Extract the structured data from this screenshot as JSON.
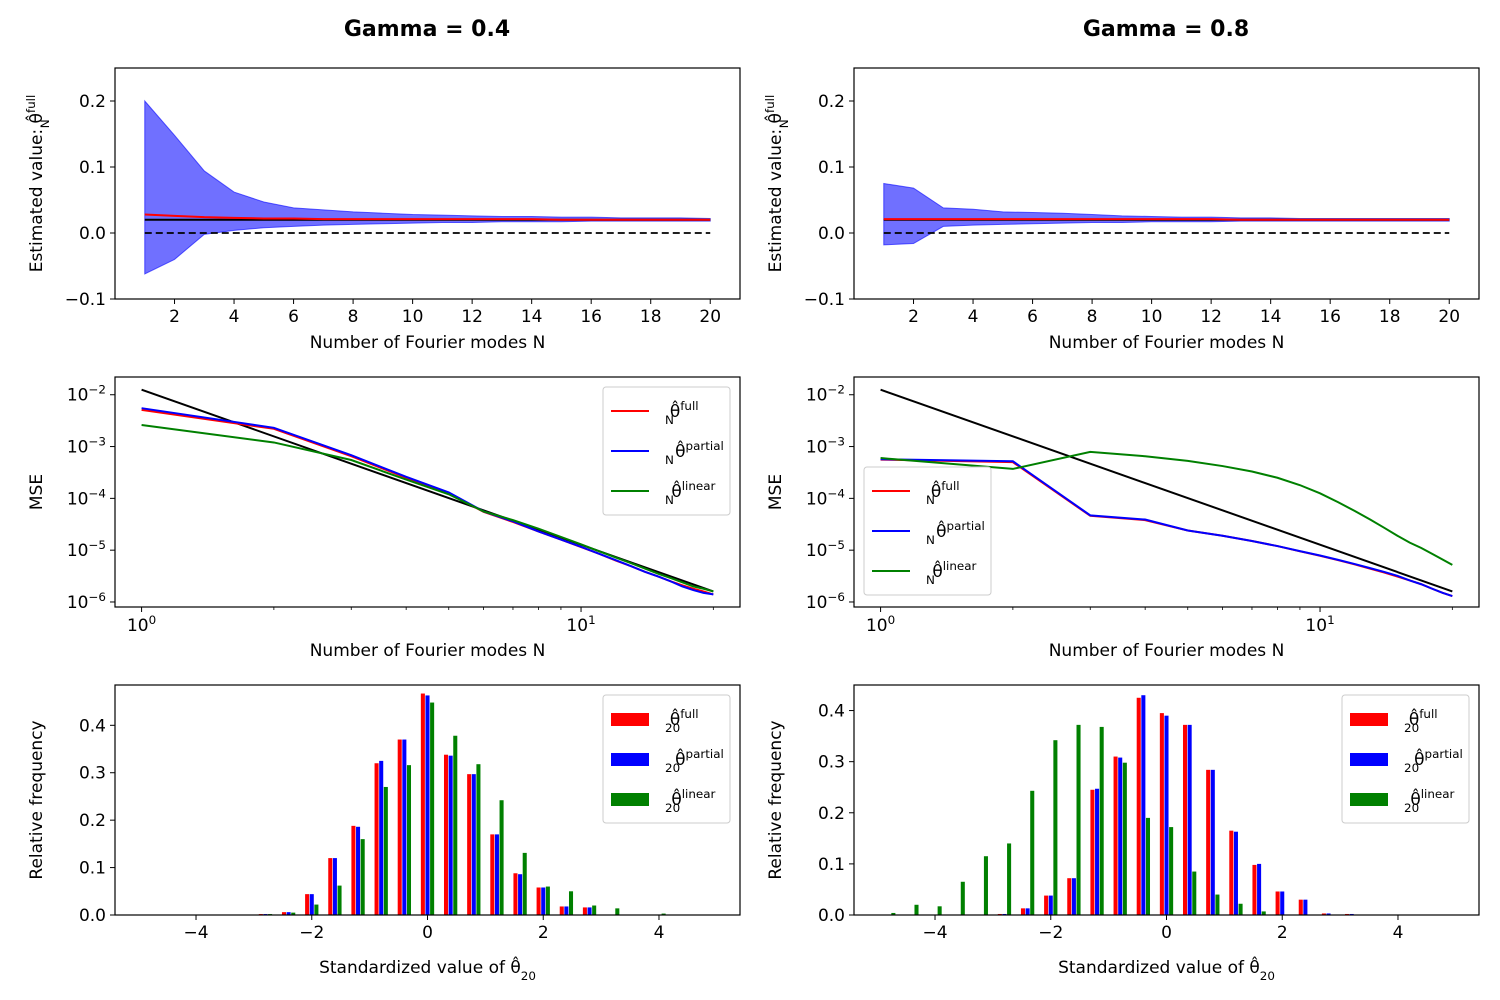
{
  "figure": {
    "columns": [
      {
        "title": "Gamma = 0.4"
      },
      {
        "title": "Gamma = 0.8"
      }
    ]
  },
  "colors": {
    "full": "#ff0000",
    "partial": "#0000ff",
    "linear": "#008000",
    "reference": "#000000",
    "band": "#7070ff"
  },
  "chart_data": [
    {
      "id": "est_g04",
      "type": "area",
      "row": 0,
      "col": 0,
      "xlabel": "Number of Fourier modes N",
      "ylabel": "Estimated value: θ̂",
      "ylabel_sup": "full",
      "ylabel_sub": "N",
      "xlim": [
        0,
        21
      ],
      "ylim": [
        -0.1,
        0.25
      ],
      "xticks": [
        2,
        4,
        6,
        8,
        10,
        12,
        14,
        16,
        18,
        20
      ],
      "yticks": [
        -0.1,
        0.0,
        0.1,
        0.2
      ],
      "ytick_labels": [
        "−0.1",
        "0.0",
        "0.1",
        "0.2"
      ],
      "x": [
        1,
        2,
        3,
        4,
        5,
        6,
        7,
        8,
        9,
        10,
        11,
        12,
        13,
        14,
        15,
        16,
        17,
        18,
        19,
        20
      ],
      "band_upper": [
        0.2,
        0.148,
        0.094,
        0.062,
        0.047,
        0.038,
        0.035,
        0.032,
        0.03,
        0.028,
        0.027,
        0.026,
        0.025,
        0.025,
        0.024,
        0.024,
        0.023,
        0.023,
        0.023,
        0.022
      ],
      "band_lower": [
        -0.062,
        -0.04,
        -0.002,
        0.004,
        0.008,
        0.01,
        0.012,
        0.013,
        0.014,
        0.015,
        0.016,
        0.016,
        0.017,
        0.017,
        0.017,
        0.018,
        0.018,
        0.018,
        0.018,
        0.018
      ],
      "mean": [
        0.028,
        0.026,
        0.024,
        0.023,
        0.022,
        0.022,
        0.021,
        0.021,
        0.021,
        0.021,
        0.021,
        0.021,
        0.021,
        0.021,
        0.02,
        0.02,
        0.02,
        0.02,
        0.02,
        0.02
      ],
      "true_value": 0.02,
      "zero_line": 0.0
    },
    {
      "id": "est_g08",
      "type": "area",
      "row": 0,
      "col": 1,
      "xlabel": "Number of Fourier modes N",
      "ylabel": "Estimated value: θ̂",
      "ylabel_sup": "full",
      "ylabel_sub": "N",
      "xlim": [
        0,
        21
      ],
      "ylim": [
        -0.1,
        0.25
      ],
      "xticks": [
        2,
        4,
        6,
        8,
        10,
        12,
        14,
        16,
        18,
        20
      ],
      "yticks": [
        -0.1,
        0.0,
        0.1,
        0.2
      ],
      "ytick_labels": [
        "−0.1",
        "0.0",
        "0.1",
        "0.2"
      ],
      "x": [
        1,
        2,
        3,
        4,
        5,
        6,
        7,
        8,
        9,
        10,
        11,
        12,
        13,
        14,
        15,
        16,
        17,
        18,
        19,
        20
      ],
      "band_upper": [
        0.075,
        0.068,
        0.038,
        0.036,
        0.032,
        0.031,
        0.03,
        0.028,
        0.026,
        0.025,
        0.024,
        0.024,
        0.023,
        0.023,
        0.022,
        0.022,
        0.022,
        0.022,
        0.022,
        0.022
      ],
      "band_lower": [
        -0.018,
        -0.016,
        0.01,
        0.012,
        0.013,
        0.014,
        0.015,
        0.016,
        0.016,
        0.017,
        0.017,
        0.017,
        0.018,
        0.018,
        0.018,
        0.018,
        0.018,
        0.018,
        0.018,
        0.018
      ],
      "mean": [
        0.021,
        0.021,
        0.021,
        0.021,
        0.021,
        0.021,
        0.021,
        0.021,
        0.021,
        0.021,
        0.021,
        0.021,
        0.02,
        0.02,
        0.02,
        0.02,
        0.02,
        0.02,
        0.02,
        0.02
      ],
      "true_value": 0.02,
      "zero_line": 0.0
    },
    {
      "id": "mse_g04",
      "type": "line",
      "row": 1,
      "col": 0,
      "xscale": "log",
      "yscale": "log",
      "xlabel": "Number of Fourier modes N",
      "ylabel": "MSE",
      "xlim": [
        0.87,
        23
      ],
      "ylim": [
        8e-07,
        0.022
      ],
      "xticks": [
        1,
        10
      ],
      "xtick_bases": [
        "10",
        "10"
      ],
      "xtick_exps": [
        "0",
        "1"
      ],
      "yticks": [
        1e-06,
        1e-05,
        0.0001,
        0.001,
        0.01
      ],
      "ytick_exps": [
        "−6",
        "−5",
        "−4",
        "−3",
        "−2"
      ],
      "legend_loc": "upper right",
      "x": [
        1,
        2,
        3,
        4,
        5,
        6,
        7,
        8,
        9,
        10,
        11,
        12,
        13,
        14,
        15,
        16,
        17,
        18,
        19,
        20
      ],
      "reference": {
        "x": [
          1,
          20
        ],
        "values": [
          0.0125,
          1.6e-06
        ]
      },
      "series": [
        {
          "key": "full",
          "sup": "full",
          "values": [
            0.0051,
            0.0022,
            0.00065,
            0.00025,
            0.000125,
            5.5e-05,
            3.5e-05,
            2.3e-05,
            1.6e-05,
            1.15e-05,
            8.5e-06,
            6.3e-06,
            4.9e-06,
            3.8e-06,
            3.1e-06,
            2.5e-06,
            2.1e-06,
            1.8e-06,
            1.6e-06,
            1.4e-06
          ]
        },
        {
          "key": "partial",
          "sup": "partial",
          "values": [
            0.0055,
            0.0023,
            0.00068,
            0.00026,
            0.00013,
            5.6e-05,
            3.6e-05,
            2.3e-05,
            1.6e-05,
            1.16e-05,
            8.5e-06,
            6.4e-06,
            4.9e-06,
            3.8e-06,
            3.1e-06,
            2.5e-06,
            2e-06,
            1.7e-06,
            1.5e-06,
            1.4e-06
          ]
        },
        {
          "key": "linear",
          "sup": "linear",
          "values": [
            0.0026,
            0.0012,
            0.00055,
            0.00023,
            0.00012,
            5.6e-05,
            3.8e-05,
            2.6e-05,
            1.8e-05,
            1.3e-05,
            9.5e-06,
            7.2e-06,
            5.6e-06,
            4.4e-06,
            3.5e-06,
            2.9e-06,
            2.4e-06,
            2e-06,
            1.8e-06,
            1.6e-06
          ]
        }
      ]
    },
    {
      "id": "mse_g08",
      "type": "line",
      "row": 1,
      "col": 1,
      "xscale": "log",
      "yscale": "log",
      "xlabel": "Number of Fourier modes N",
      "ylabel": "MSE",
      "xlim": [
        0.87,
        23
      ],
      "ylim": [
        8e-07,
        0.022
      ],
      "xticks": [
        1,
        10
      ],
      "xtick_bases": [
        "10",
        "10"
      ],
      "xtick_exps": [
        "0",
        "1"
      ],
      "yticks": [
        1e-06,
        1e-05,
        0.0001,
        0.001,
        0.01
      ],
      "ytick_exps": [
        "−6",
        "−5",
        "−4",
        "−3",
        "−2"
      ],
      "legend_loc": "center left",
      "x": [
        1,
        2,
        3,
        4,
        5,
        6,
        7,
        8,
        9,
        10,
        11,
        12,
        13,
        14,
        15,
        16,
        17,
        18,
        19,
        20
      ],
      "reference": {
        "x": [
          1,
          20
        ],
        "values": [
          0.0125,
          1.6e-06
        ]
      },
      "series": [
        {
          "key": "full",
          "sup": "full",
          "values": [
            0.00056,
            0.0005,
            4.6e-05,
            3.8e-05,
            2.4e-05,
            1.9e-05,
            1.5e-05,
            1.2e-05,
            9.5e-06,
            7.8e-06,
            6.4e-06,
            5.3e-06,
            4.4e-06,
            3.7e-06,
            3.1e-06,
            2.6e-06,
            2.2e-06,
            1.8e-06,
            1.5e-06,
            1.3e-06
          ]
        },
        {
          "key": "partial",
          "sup": "partial",
          "values": [
            0.00057,
            0.00052,
            4.7e-05,
            3.9e-05,
            2.4e-05,
            1.9e-05,
            1.5e-05,
            1.2e-05,
            9.6e-06,
            7.9e-06,
            6.5e-06,
            5.4e-06,
            4.5e-06,
            3.8e-06,
            3.2e-06,
            2.6e-06,
            2.2e-06,
            1.8e-06,
            1.5e-06,
            1.3e-06
          ]
        },
        {
          "key": "linear",
          "sup": "linear",
          "values": [
            0.0006,
            0.00037,
            0.00079,
            0.00065,
            0.00053,
            0.00042,
            0.00033,
            0.00025,
            0.00018,
            0.000125,
            8.4e-05,
            5.7e-05,
            3.9e-05,
            2.7e-05,
            1.9e-05,
            1.4e-05,
            1.1e-05,
            8.5e-06,
            6.6e-06,
            5.2e-06
          ]
        }
      ]
    },
    {
      "id": "hist_g04",
      "type": "bar",
      "row": 2,
      "col": 0,
      "xlabel": "Standardized value of θ̂",
      "xlabel_sub": "20",
      "ylabel": "Relative frequency",
      "xlim": [
        -5.4,
        5.4
      ],
      "ylim": [
        0,
        0.485
      ],
      "xticks": [
        -4,
        -2,
        0,
        2,
        4
      ],
      "xtick_labels": [
        "−4",
        "−2",
        "0",
        "2",
        "4"
      ],
      "yticks": [
        0,
        0.1,
        0.2,
        0.3,
        0.4
      ],
      "ytick_labels": [
        "0.0",
        "0.1",
        "0.2",
        "0.3",
        "0.4"
      ],
      "legend_loc": "upper right",
      "series": [
        {
          "key": "full",
          "sup": "full",
          "sub": "20",
          "x": [
            -2.8,
            -2.4,
            -2.0,
            -1.6,
            -1.2,
            -0.8,
            -0.4,
            0.0,
            0.4,
            0.8,
            1.2,
            1.6,
            2.0,
            2.4,
            2.8
          ],
          "values": [
            0.002,
            0.006,
            0.044,
            0.12,
            0.188,
            0.32,
            0.37,
            0.467,
            0.338,
            0.297,
            0.17,
            0.088,
            0.058,
            0.018,
            0.016
          ]
        },
        {
          "key": "partial",
          "sup": "partial",
          "sub": "20",
          "x": [
            -2.8,
            -2.4,
            -2.0,
            -1.6,
            -1.2,
            -0.8,
            -0.4,
            0.0,
            0.4,
            0.8,
            1.2,
            1.6,
            2.0,
            2.4,
            2.8
          ],
          "values": [
            0.002,
            0.006,
            0.044,
            0.12,
            0.186,
            0.325,
            0.37,
            0.463,
            0.336,
            0.297,
            0.17,
            0.086,
            0.058,
            0.018,
            0.016
          ]
        },
        {
          "key": "linear",
          "sup": "linear",
          "sub": "20",
          "x": [
            -3.2,
            -2.8,
            -2.4,
            -2.0,
            -1.6,
            -1.2,
            -0.8,
            -0.4,
            0.0,
            0.4,
            0.8,
            1.2,
            1.6,
            2.0,
            2.4,
            2.8,
            3.2,
            4.0
          ],
          "values": [
            0.001,
            0.002,
            0.005,
            0.022,
            0.062,
            0.16,
            0.27,
            0.316,
            0.448,
            0.378,
            0.318,
            0.242,
            0.131,
            0.06,
            0.05,
            0.02,
            0.014,
            0.003
          ]
        }
      ]
    },
    {
      "id": "hist_g08",
      "type": "bar",
      "row": 2,
      "col": 1,
      "xlabel": "Standardized value of θ̂",
      "xlabel_sub": "20",
      "ylabel": "Relative frequency",
      "xlim": [
        -5.4,
        5.4
      ],
      "ylim": [
        0,
        0.45
      ],
      "xticks": [
        -4,
        -2,
        0,
        2,
        4
      ],
      "xtick_labels": [
        "−4",
        "−2",
        "0",
        "2",
        "4"
      ],
      "yticks": [
        0,
        0.1,
        0.2,
        0.3,
        0.4
      ],
      "ytick_labels": [
        "0.0",
        "0.1",
        "0.2",
        "0.3",
        "0.4"
      ],
      "legend_loc": "upper right",
      "series": [
        {
          "key": "full",
          "sup": "full",
          "sub": "20",
          "x": [
            -2.8,
            -2.4,
            -2.0,
            -1.6,
            -1.2,
            -0.8,
            -0.4,
            0.0,
            0.4,
            0.8,
            1.2,
            1.6,
            2.0,
            2.4,
            2.8,
            3.2
          ],
          "values": [
            0.002,
            0.013,
            0.038,
            0.072,
            0.245,
            0.31,
            0.425,
            0.395,
            0.372,
            0.284,
            0.165,
            0.098,
            0.046,
            0.03,
            0.003,
            0.002
          ]
        },
        {
          "key": "partial",
          "sup": "partial",
          "sub": "20",
          "x": [
            -2.8,
            -2.4,
            -2.0,
            -1.6,
            -1.2,
            -0.8,
            -0.4,
            0.0,
            0.4,
            0.8,
            1.2,
            1.6,
            2.0,
            2.4,
            2.8,
            3.2
          ],
          "values": [
            0.002,
            0.013,
            0.038,
            0.072,
            0.247,
            0.308,
            0.43,
            0.39,
            0.372,
            0.284,
            0.163,
            0.1,
            0.046,
            0.03,
            0.003,
            0.002
          ]
        },
        {
          "key": "linear",
          "sup": "linear",
          "sub": "20",
          "x": [
            -4.8,
            -4.4,
            -4.0,
            -3.6,
            -3.2,
            -2.8,
            -2.4,
            -2.0,
            -1.6,
            -1.2,
            -0.8,
            -0.4,
            0.0,
            0.4,
            0.8,
            1.2,
            1.6
          ],
          "values": [
            0.004,
            0.02,
            0.017,
            0.065,
            0.115,
            0.14,
            0.243,
            0.342,
            0.372,
            0.368,
            0.298,
            0.19,
            0.172,
            0.085,
            0.04,
            0.022,
            0.007
          ]
        }
      ]
    }
  ]
}
